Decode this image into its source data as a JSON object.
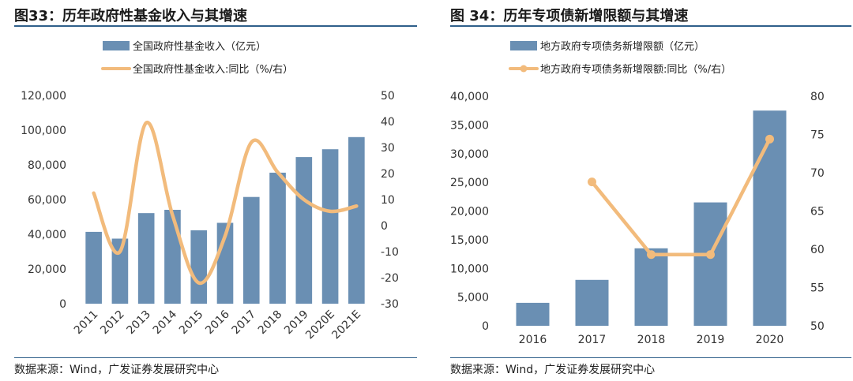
{
  "left": {
    "title": "图33：历年政府性基金收入与其增速",
    "source": "数据来源：Wind，广发证券发展研究中心",
    "chart_data": {
      "type": "bar+line",
      "categories": [
        "2011",
        "2012",
        "2013",
        "2014",
        "2015",
        "2016",
        "2017",
        "2018",
        "2019",
        "2020E",
        "2021E"
      ],
      "series": [
        {
          "name": "全国政府性基金收入（亿元）",
          "kind": "bar",
          "axis": "left",
          "values": [
            41400,
            37500,
            52200,
            54100,
            42300,
            46600,
            61500,
            75500,
            84500,
            89000,
            96000
          ]
        },
        {
          "name": "全国政府性基金收入:同比（%/右）",
          "kind": "line",
          "axis": "right",
          "values": [
            12.5,
            -10,
            39.5,
            4,
            -22,
            -4,
            32,
            20.5,
            10,
            5.5,
            7.5
          ]
        }
      ],
      "ylim_left": [
        0,
        120000
      ],
      "yticks_left": [
        "0",
        "20,000",
        "40,000",
        "60,000",
        "80,000",
        "100,000",
        "120,000"
      ],
      "ylim_right": [
        -30,
        50
      ],
      "yticks_right": [
        "-30",
        "-20",
        "-10",
        "0",
        "10",
        "20",
        "30",
        "40",
        "50"
      ],
      "bar_color": "#6a8fb3",
      "line_color": "#f2bb7c",
      "smooth": true,
      "markers": false
    }
  },
  "right": {
    "title": "图 34：历年专项债新增限额与其增速",
    "source": "数据来源：Wind，广发证券发展研究中心",
    "chart_data": {
      "type": "bar+line",
      "categories": [
        "2016",
        "2017",
        "2018",
        "2019",
        "2020"
      ],
      "series": [
        {
          "name": "地方政府专项债务新增限额（亿元）",
          "kind": "bar",
          "axis": "left",
          "values": [
            4000,
            8000,
            13500,
            21500,
            37500
          ]
        },
        {
          "name": "地方政府专项债务新增限额:同比（%/右）",
          "kind": "line",
          "axis": "right",
          "values": [
            null,
            68.8,
            59.3,
            59.3,
            74.4
          ]
        }
      ],
      "ylim_left": [
        0,
        40000
      ],
      "yticks_left": [
        "0",
        "5,000",
        "10,000",
        "15,000",
        "20,000",
        "25,000",
        "30,000",
        "35,000",
        "40,000"
      ],
      "ylim_right": [
        50,
        80
      ],
      "yticks_right": [
        "50",
        "55",
        "60",
        "65",
        "70",
        "75",
        "80"
      ],
      "bar_color": "#6a8fb3",
      "line_color": "#f2bb7c",
      "smooth": false,
      "markers": true
    }
  }
}
